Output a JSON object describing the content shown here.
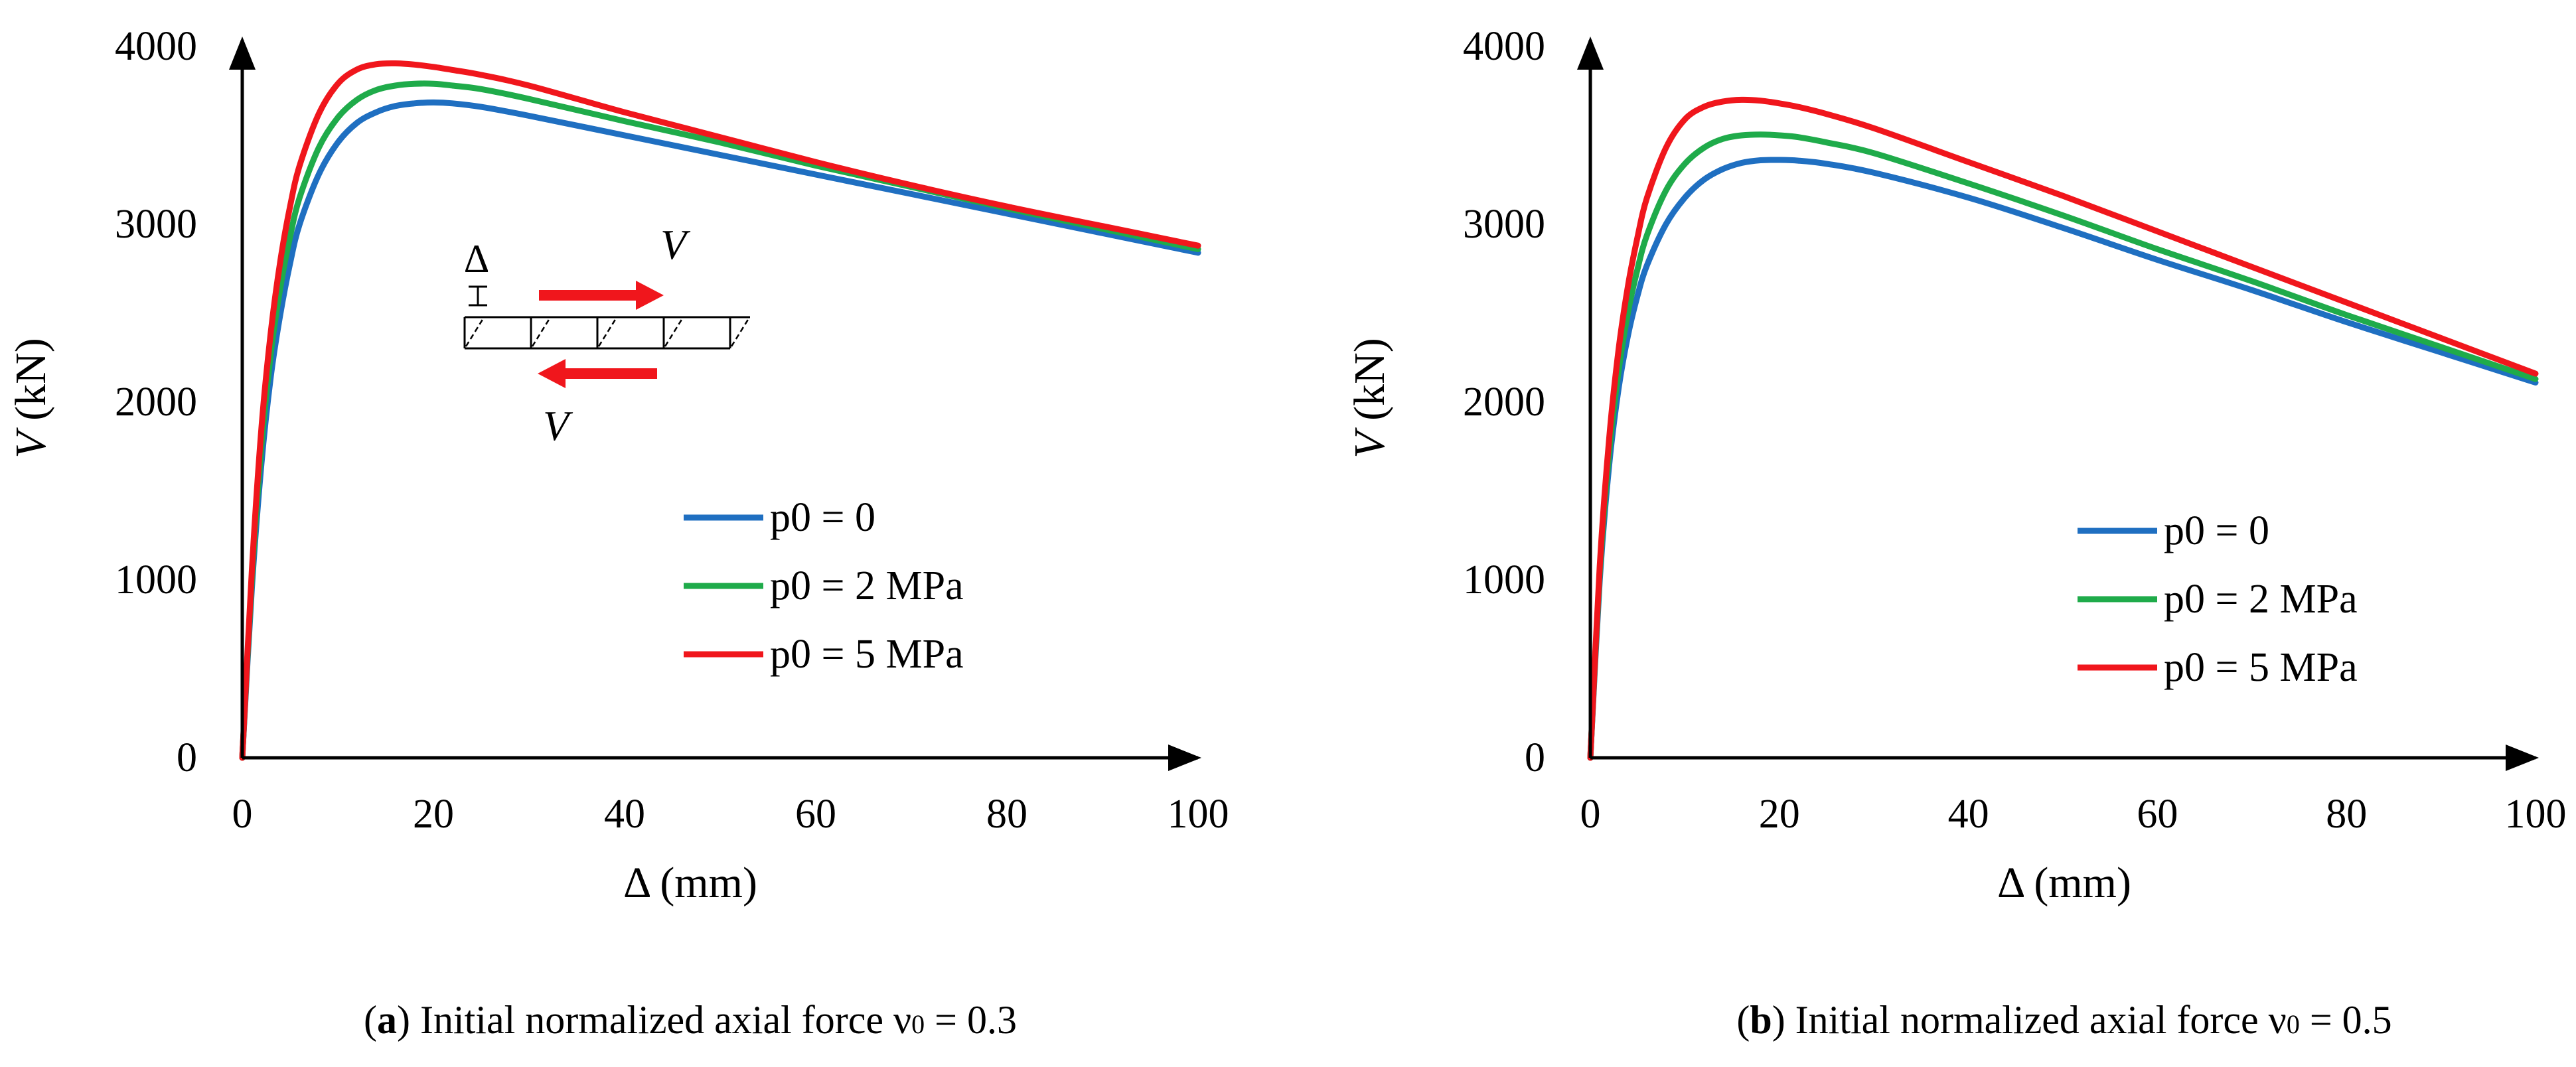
{
  "chart_data": [
    {
      "panel": "a",
      "type": "line",
      "xlabel": "Δ (mm)",
      "ylabel_var": "V",
      "ylabel_unit": " (kN)",
      "xlim": [
        0,
        100
      ],
      "ylim": [
        0,
        4000
      ],
      "xticks": [
        0,
        20,
        40,
        60,
        80,
        100
      ],
      "yticks": [
        0,
        1000,
        2000,
        3000,
        4000
      ],
      "legend_position": "center-right",
      "caption": {
        "letter": "a",
        "text": "Initial normalized axial force ν",
        "sub": "0",
        "value": " = 0.3"
      },
      "inset": {
        "delta_label": "Δ",
        "v_top": "V",
        "v_bottom": "V"
      },
      "series": [
        {
          "name": "p0 = 0",
          "color": "#1f6fc1",
          "x": [
            0,
            1,
            2,
            3,
            4,
            5,
            6,
            8,
            10,
            12,
            14,
            16,
            18,
            20,
            22,
            25,
            30,
            40,
            50,
            60,
            70,
            80,
            90,
            100
          ],
          "y": [
            0,
            950,
            1650,
            2150,
            2500,
            2780,
            3000,
            3280,
            3460,
            3570,
            3630,
            3665,
            3680,
            3685,
            3680,
            3660,
            3610,
            3500,
            3390,
            3280,
            3170,
            3060,
            2950,
            2840
          ]
        },
        {
          "name": "p0 = 2 MPa",
          "color": "#1fab4a",
          "x": [
            0,
            1,
            2,
            3,
            4,
            5,
            6,
            8,
            10,
            12,
            14,
            16,
            18,
            20,
            22,
            25,
            30,
            40,
            50,
            60,
            70,
            80,
            90,
            100
          ],
          "y": [
            0,
            1000,
            1750,
            2280,
            2650,
            2930,
            3150,
            3430,
            3600,
            3700,
            3755,
            3780,
            3790,
            3790,
            3780,
            3760,
            3705,
            3580,
            3460,
            3330,
            3210,
            3090,
            2975,
            2860
          ]
        },
        {
          "name": "p0 = 5 MPa",
          "color": "#f0161c",
          "x": [
            0,
            1,
            2,
            3,
            4,
            5,
            6,
            8,
            10,
            12,
            14,
            16,
            18,
            20,
            22,
            25,
            30,
            40,
            50,
            60,
            70,
            80,
            90,
            100
          ],
          "y": [
            0,
            1050,
            1850,
            2400,
            2800,
            3100,
            3330,
            3620,
            3790,
            3870,
            3900,
            3905,
            3898,
            3885,
            3868,
            3840,
            3780,
            3630,
            3490,
            3350,
            3220,
            3100,
            2990,
            2880
          ]
        }
      ]
    },
    {
      "panel": "b",
      "type": "line",
      "xlabel": "Δ (mm)",
      "ylabel_var": "V",
      "ylabel_unit": " (kN)",
      "xlim": [
        0,
        100
      ],
      "ylim": [
        0,
        4000
      ],
      "xticks": [
        0,
        20,
        40,
        60,
        80,
        100
      ],
      "yticks": [
        0,
        1000,
        2000,
        3000,
        4000
      ],
      "legend_position": "center-right",
      "caption": {
        "letter": "b",
        "text": "Initial normalized axial force ν",
        "sub": "0",
        "value": " = 0.5"
      },
      "series": [
        {
          "name": "p0 = 0",
          "color": "#1f6fc1",
          "x": [
            0,
            1,
            2,
            3,
            4,
            5,
            6,
            8,
            10,
            12,
            14,
            16,
            18,
            20,
            22,
            25,
            30,
            40,
            50,
            60,
            70,
            80,
            90,
            100
          ],
          "y": [
            0,
            1000,
            1650,
            2080,
            2380,
            2600,
            2770,
            3000,
            3150,
            3250,
            3310,
            3345,
            3360,
            3362,
            3358,
            3340,
            3290,
            3150,
            2980,
            2800,
            2630,
            2450,
            2280,
            2110
          ]
        },
        {
          "name": "p0 = 2 MPa",
          "color": "#1fab4a",
          "x": [
            0,
            1,
            2,
            3,
            4,
            5,
            6,
            8,
            10,
            12,
            14,
            16,
            18,
            20,
            22,
            25,
            30,
            40,
            50,
            60,
            70,
            80,
            90,
            100
          ],
          "y": [
            0,
            1040,
            1720,
            2180,
            2510,
            2750,
            2940,
            3190,
            3340,
            3430,
            3480,
            3500,
            3505,
            3500,
            3490,
            3460,
            3400,
            3230,
            3050,
            2860,
            2680,
            2490,
            2310,
            2130
          ]
        },
        {
          "name": "p0 = 5 MPa",
          "color": "#f0161c",
          "x": [
            0,
            1,
            2,
            3,
            4,
            5,
            6,
            8,
            10,
            12,
            14,
            16,
            18,
            20,
            22,
            25,
            30,
            40,
            50,
            60,
            70,
            80,
            90,
            100
          ],
          "y": [
            0,
            1080,
            1800,
            2300,
            2660,
            2930,
            3150,
            3430,
            3590,
            3660,
            3690,
            3700,
            3695,
            3680,
            3660,
            3620,
            3540,
            3350,
            3160,
            2960,
            2760,
            2560,
            2360,
            2160
          ]
        }
      ]
    }
  ]
}
